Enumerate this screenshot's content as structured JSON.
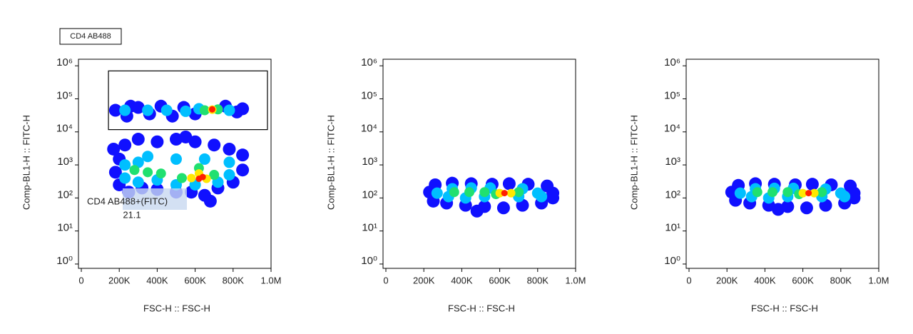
{
  "header": "CD4 AB488",
  "chart_data": [
    {
      "type": "scatter",
      "xlabel": "FSC-H :: FSC-H",
      "ylabel": "Comp-BL1-H :: FITC-H",
      "yscale": "log",
      "xlim": [
        -15000,
        1000000
      ],
      "ylim": [
        0.74,
        1580000
      ],
      "xticks": [
        0,
        {
          "value": 200000,
          "label": "200K"
        },
        {
          "value": 400000,
          "label": "400K"
        },
        {
          "value": 600000,
          "label": "600K"
        },
        {
          "value": 800000,
          "label": "800K"
        },
        {
          "value": 1000000,
          "label": "1.0M"
        }
      ],
      "yticks": [
        {
          "value": 1,
          "label": "10⁰"
        },
        {
          "value": 10,
          "label": "10¹"
        },
        {
          "value": 100,
          "label": "10²"
        },
        {
          "value": 1000,
          "label": "10³"
        },
        {
          "value": 10000,
          "label": "10⁴"
        },
        {
          "value": 100000,
          "label": "10⁵"
        },
        {
          "value": 1000000,
          "label": "10⁶"
        }
      ],
      "gate": {
        "name": "CD4 AB488+(FITC)",
        "frequency": 21.1,
        "xlim": [
          143000,
          981000
        ],
        "ylim": [
          11700,
          700000
        ]
      },
      "series": [
        {
          "color": "#1010ff",
          "x": [
            180000,
            240000,
            300000,
            360000,
            420000,
            480000,
            540000,
            600000,
            760000,
            820000,
            850000,
            260000,
            170000,
            200000,
            180000,
            200000,
            250000,
            320000,
            400000,
            500000,
            580000,
            650000,
            720000,
            800000,
            850000,
            850000,
            780000,
            700000,
            600000,
            500000,
            400000,
            300000,
            230000,
            680000,
            550000
          ],
          "y": [
            45000,
            30000,
            55000,
            35000,
            60000,
            30000,
            55000,
            35000,
            60000,
            40000,
            50000,
            60000,
            3000,
            1500,
            600,
            250,
            150,
            200,
            180,
            150,
            150,
            120,
            200,
            300,
            700,
            2000,
            3000,
            4000,
            5000,
            6000,
            5000,
            6000,
            4000,
            80,
            7000
          ]
        },
        {
          "color": "#00bfff",
          "x": [
            230000,
            350000,
            450000,
            550000,
            620000,
            780000,
            230000,
            230000,
            300000,
            400000,
            500000,
            600000,
            720000,
            780000,
            780000,
            650000,
            500000,
            350000,
            300000
          ],
          "y": [
            45000,
            45000,
            45000,
            42000,
            50000,
            45000,
            1000,
            400,
            300,
            350,
            250,
            250,
            300,
            500,
            1200,
            1500,
            1500,
            1800,
            1200
          ]
        },
        {
          "color": "#20e070",
          "x": [
            650000,
            720000,
            280000,
            350000,
            420000,
            530000,
            700000,
            620000
          ],
          "y": [
            45000,
            48000,
            700,
            600,
            550,
            400,
            500,
            800
          ]
        },
        {
          "color": "#ffe800",
          "x": [
            690000,
            580000,
            660000,
            620000
          ],
          "y": [
            47000,
            400,
            380,
            550
          ]
        },
        {
          "color": "#ff2000",
          "x": [
            690000,
            620000,
            640000
          ],
          "y": [
            48000,
            380,
            430
          ]
        }
      ]
    },
    {
      "type": "scatter",
      "xlabel": "FSC-H :: FSC-H",
      "ylabel": "Comp-BL1-H :: FITC-H",
      "yscale": "log",
      "xlim": [
        -15000,
        1000000
      ],
      "ylim": [
        0.74,
        1580000
      ],
      "xticks": [
        0,
        {
          "value": 200000,
          "label": "200K"
        },
        {
          "value": 400000,
          "label": "400K"
        },
        {
          "value": 600000,
          "label": "600K"
        },
        {
          "value": 800000,
          "label": "800K"
        },
        {
          "value": 1000000,
          "label": "1.0M"
        }
      ],
      "yticks": [
        {
          "value": 1,
          "label": "10⁰"
        },
        {
          "value": 10,
          "label": "10¹"
        },
        {
          "value": 100,
          "label": "10²"
        },
        {
          "value": 1000,
          "label": "10³"
        },
        {
          "value": 10000,
          "label": "10⁴"
        },
        {
          "value": 100000,
          "label": "10⁵"
        },
        {
          "value": 1000000,
          "label": "10⁶"
        }
      ],
      "series": [
        {
          "color": "#1010ff",
          "x": [
            230000,
            250000,
            260000,
            320000,
            350000,
            420000,
            450000,
            520000,
            560000,
            620000,
            650000,
            720000,
            750000,
            820000,
            850000,
            880000,
            880000,
            480000
          ],
          "y": [
            150,
            80,
            250,
            70,
            280,
            60,
            270,
            55,
            260,
            50,
            270,
            60,
            260,
            70,
            230,
            140,
            100,
            40
          ]
        },
        {
          "color": "#00bfff",
          "x": [
            270000,
            330000,
            350000,
            420000,
            450000,
            520000,
            550000,
            700000,
            720000,
            800000,
            820000
          ],
          "y": [
            140,
            110,
            190,
            100,
            200,
            110,
            200,
            110,
            190,
            140,
            110
          ]
        },
        {
          "color": "#20e070",
          "x": [
            360000,
            440000,
            520000,
            700000,
            580000
          ],
          "y": [
            150,
            150,
            150,
            150,
            130
          ]
        },
        {
          "color": "#ffe800",
          "x": [
            600000,
            660000
          ],
          "y": [
            140,
            140
          ]
        },
        {
          "color": "#ff2000",
          "x": [
            625000
          ],
          "y": [
            140
          ]
        }
      ]
    },
    {
      "type": "scatter",
      "xlabel": "FSC-H :: FSC-H",
      "ylabel": "Comp-BL1-H :: FITC-H",
      "yscale": "log",
      "xlim": [
        -15000,
        1000000
      ],
      "ylim": [
        0.74,
        1580000
      ],
      "xticks": [
        0,
        {
          "value": 200000,
          "label": "200K"
        },
        {
          "value": 400000,
          "label": "400K"
        },
        {
          "value": 600000,
          "label": "600K"
        },
        {
          "value": 800000,
          "label": "800K"
        },
        {
          "value": 1000000,
          "label": "1.0M"
        }
      ],
      "yticks": [
        {
          "value": 1,
          "label": "10⁰"
        },
        {
          "value": 10,
          "label": "10¹"
        },
        {
          "value": 100,
          "label": "10²"
        },
        {
          "value": 1000,
          "label": "10³"
        },
        {
          "value": 10000,
          "label": "10⁴"
        },
        {
          "value": 100000,
          "label": "10⁵"
        },
        {
          "value": 1000000,
          "label": "10⁶"
        }
      ],
      "series": [
        {
          "color": "#1010ff",
          "x": [
            225000,
            245000,
            260000,
            320000,
            350000,
            420000,
            450000,
            520000,
            560000,
            620000,
            650000,
            720000,
            750000,
            820000,
            850000,
            870000,
            870000,
            470000
          ],
          "y": [
            150,
            85,
            240,
            70,
            270,
            60,
            260,
            55,
            250,
            50,
            260,
            60,
            250,
            70,
            230,
            140,
            100,
            45
          ]
        },
        {
          "color": "#00bfff",
          "x": [
            270000,
            330000,
            350000,
            420000,
            450000,
            520000,
            550000,
            700000,
            720000,
            800000,
            820000
          ],
          "y": [
            140,
            110,
            190,
            100,
            195,
            110,
            195,
            110,
            185,
            140,
            110
          ]
        },
        {
          "color": "#20e070",
          "x": [
            360000,
            440000,
            520000,
            700000,
            580000
          ],
          "y": [
            150,
            150,
            150,
            150,
            130
          ]
        },
        {
          "color": "#ffe800",
          "x": [
            600000,
            660000
          ],
          "y": [
            140,
            140
          ]
        },
        {
          "color": "#ff2000",
          "x": [
            630000
          ],
          "y": [
            140
          ]
        }
      ]
    }
  ]
}
